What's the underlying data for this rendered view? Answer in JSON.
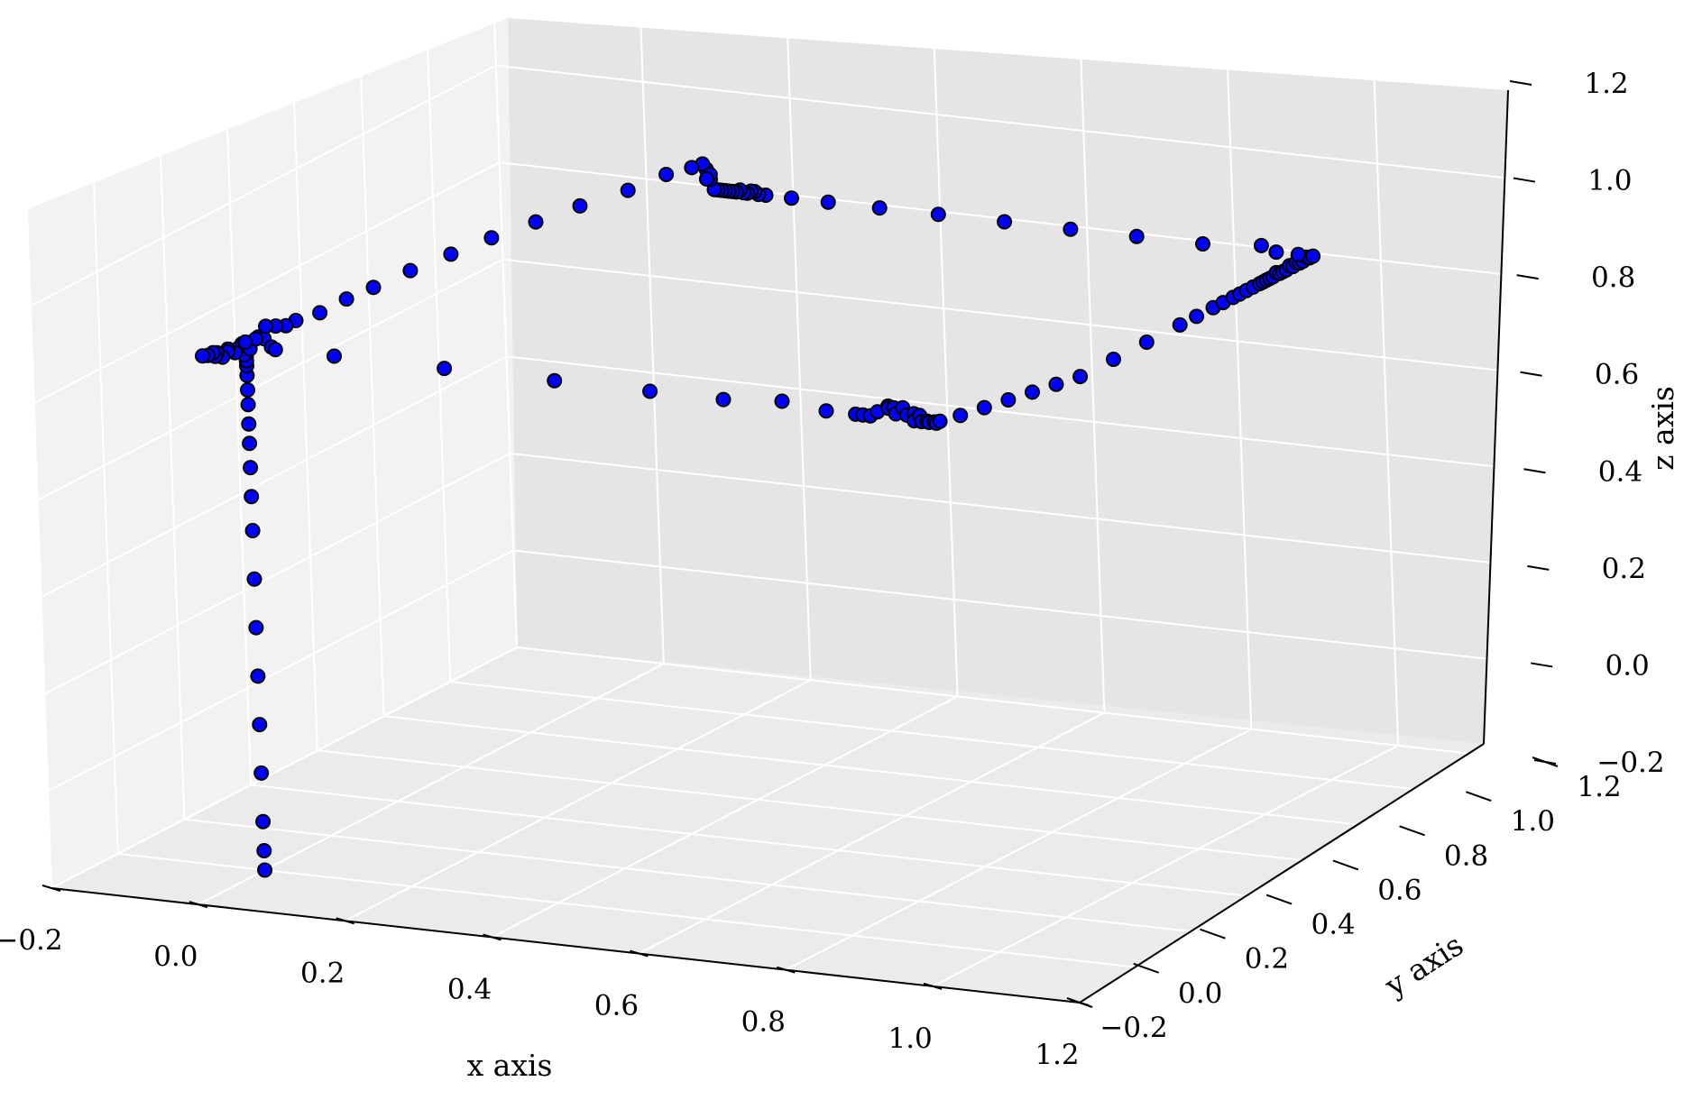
{
  "chart_data": {
    "type": "scatter",
    "title": "",
    "xlabel": "x axis",
    "ylabel": "y axis",
    "zlabel": "z axis",
    "xlim": [
      -0.2,
      1.2
    ],
    "ylim": [
      -0.2,
      1.2
    ],
    "zlim": [
      -0.2,
      1.2
    ],
    "x_ticks": [
      "−0.2",
      "0.0",
      "0.2",
      "0.4",
      "0.6",
      "0.8",
      "1.0",
      "1.2"
    ],
    "y_ticks": [
      "−0.2",
      "0.0",
      "0.2",
      "0.4",
      "0.6",
      "0.8",
      "1.0",
      "1.2"
    ],
    "z_ticks": [
      "−0.2",
      "0.0",
      "0.2",
      "0.4",
      "0.6",
      "0.8",
      "1.0",
      "1.2"
    ],
    "grid": true,
    "marker_color": "#0000ff",
    "series": [
      {
        "points": [
          [
            0.0,
            0.0,
            -0.2
          ],
          [
            0.0,
            0.0,
            -0.16
          ],
          [
            0.0,
            0.0,
            -0.1
          ],
          [
            0.0,
            0.0,
            0.0
          ],
          [
            0.0,
            0.0,
            0.1
          ],
          [
            0.0,
            0.0,
            0.2
          ],
          [
            0.0,
            0.0,
            0.3
          ],
          [
            0.0,
            0.0,
            0.4
          ],
          [
            0.0,
            0.0,
            0.5
          ],
          [
            0.0,
            0.0,
            0.57
          ],
          [
            0.0,
            0.0,
            0.63
          ],
          [
            0.0,
            0.0,
            0.68
          ],
          [
            0.0,
            0.0,
            0.72
          ],
          [
            0.0,
            0.0,
            0.76
          ],
          [
            0.0,
            0.0,
            0.79
          ],
          [
            0.0,
            0.0,
            0.82
          ],
          [
            0.0,
            0.0,
            0.84
          ],
          [
            0.0,
            0.0,
            0.86
          ],
          [
            0.0,
            0.0,
            0.87
          ],
          [
            0.0,
            0.0,
            0.85
          ],
          [
            0.0,
            0.0,
            0.88
          ],
          [
            -0.005,
            0.005,
            0.86
          ],
          [
            -0.01,
            0.01,
            0.88
          ],
          [
            -0.015,
            0.005,
            0.87
          ],
          [
            -0.02,
            0.01,
            0.86
          ],
          [
            -0.025,
            0.0,
            0.87
          ],
          [
            -0.03,
            0.01,
            0.86
          ],
          [
            -0.035,
            0.005,
            0.85
          ],
          [
            -0.04,
            0.0,
            0.86
          ],
          [
            -0.045,
            0.005,
            0.85
          ],
          [
            -0.05,
            0.01,
            0.855
          ],
          [
            -0.055,
            0.005,
            0.85
          ],
          [
            -0.06,
            0.0,
            0.85
          ],
          [
            0.005,
            -0.005,
            0.89
          ],
          [
            0.01,
            -0.01,
            0.88
          ],
          [
            0.015,
            0.005,
            0.9
          ],
          [
            0.025,
            0.0,
            0.9
          ],
          [
            0.03,
            0.01,
            0.88
          ],
          [
            0.04,
            0.0,
            0.88
          ],
          [
            0.12,
            0.0,
            0.88
          ],
          [
            0.27,
            0.0,
            0.88
          ],
          [
            0.42,
            0.0,
            0.88
          ],
          [
            0.55,
            0.0,
            0.88
          ],
          [
            0.65,
            0.0,
            0.88
          ],
          [
            0.73,
            0.0,
            0.89
          ],
          [
            0.79,
            0.0,
            0.88
          ],
          [
            0.83,
            0.0,
            0.88
          ],
          [
            0.84,
            0.0,
            0.88
          ],
          [
            0.85,
            0.0,
            0.88
          ],
          [
            0.86,
            0.0,
            0.89
          ],
          [
            0.87,
            0.01,
            0.9
          ],
          [
            0.875,
            0.0,
            0.9
          ],
          [
            0.88,
            0.005,
            0.9
          ],
          [
            0.885,
            0.0,
            0.89
          ],
          [
            0.89,
            0.01,
            0.9
          ],
          [
            0.9,
            0.0,
            0.89
          ],
          [
            0.905,
            0.01,
            0.89
          ],
          [
            0.91,
            0.0,
            0.88
          ],
          [
            0.915,
            0.005,
            0.89
          ],
          [
            0.92,
            0.0,
            0.88
          ],
          [
            0.925,
            0.005,
            0.88
          ],
          [
            0.93,
            0.0,
            0.88
          ],
          [
            0.935,
            0.005,
            0.88
          ],
          [
            0.94,
            0.0,
            0.88
          ],
          [
            0.945,
            0.0,
            0.885
          ],
          [
            0.95,
            0.05,
            0.88
          ],
          [
            0.96,
            0.1,
            0.88
          ],
          [
            0.97,
            0.15,
            0.88
          ],
          [
            0.98,
            0.2,
            0.88
          ],
          [
            0.99,
            0.25,
            0.88
          ],
          [
            1.0,
            0.3,
            0.88
          ],
          [
            1.0,
            0.4,
            0.88
          ],
          [
            1.0,
            0.5,
            0.88
          ],
          [
            1.0,
            0.6,
            0.88
          ],
          [
            1.0,
            0.65,
            0.88
          ],
          [
            1.0,
            0.7,
            0.88
          ],
          [
            1.0,
            0.73,
            0.88
          ],
          [
            1.0,
            0.76,
            0.88
          ],
          [
            1.0,
            0.78,
            0.88
          ],
          [
            1.0,
            0.8,
            0.88
          ],
          [
            1.0,
            0.82,
            0.88
          ],
          [
            1.0,
            0.84,
            0.88
          ],
          [
            1.0,
            0.85,
            0.88
          ],
          [
            1.0,
            0.86,
            0.88
          ],
          [
            1.0,
            0.87,
            0.88
          ],
          [
            1.0,
            0.88,
            0.88
          ],
          [
            1.0,
            0.89,
            0.885
          ],
          [
            1.0,
            0.9,
            0.88
          ],
          [
            1.0,
            0.91,
            0.88
          ],
          [
            1.0,
            0.92,
            0.88
          ],
          [
            1.0,
            0.93,
            0.885
          ],
          [
            1.0,
            0.94,
            0.88
          ],
          [
            1.0,
            0.95,
            0.885
          ],
          [
            1.0,
            0.96,
            0.88
          ],
          [
            1.0,
            0.97,
            0.88
          ],
          [
            1.0,
            0.98,
            0.885
          ],
          [
            1.0,
            0.99,
            0.88
          ],
          [
            1.0,
            1.0,
            0.88
          ],
          [
            0.98,
            1.0,
            0.88
          ],
          [
            0.95,
            1.0,
            0.88
          ],
          [
            0.93,
            1.0,
            0.89
          ],
          [
            0.85,
            1.0,
            0.88
          ],
          [
            0.76,
            1.0,
            0.88
          ],
          [
            0.67,
            1.0,
            0.88
          ],
          [
            0.58,
            1.0,
            0.88
          ],
          [
            0.49,
            1.0,
            0.88
          ],
          [
            0.41,
            1.0,
            0.88
          ],
          [
            0.34,
            1.0,
            0.88
          ],
          [
            0.29,
            1.0,
            0.88
          ],
          [
            0.255,
            1.0,
            0.88
          ],
          [
            0.245,
            1.0,
            0.88
          ],
          [
            0.24,
            1.0,
            0.885
          ],
          [
            0.235,
            1.0,
            0.885
          ],
          [
            0.23,
            1.0,
            0.88
          ],
          [
            0.225,
            1.0,
            0.88
          ],
          [
            0.22,
            1.0,
            0.885
          ],
          [
            0.215,
            1.0,
            0.88
          ],
          [
            0.21,
            1.0,
            0.88
          ],
          [
            0.205,
            1.0,
            0.88
          ],
          [
            0.2,
            1.0,
            0.88
          ],
          [
            0.195,
            1.0,
            0.88
          ],
          [
            0.19,
            1.0,
            0.88
          ],
          [
            0.185,
            1.0,
            0.88
          ],
          [
            0.18,
            1.0,
            0.9
          ],
          [
            0.175,
            1.0,
            0.92
          ],
          [
            0.17,
            1.0,
            0.93
          ],
          [
            0.18,
            1.0,
            0.91
          ],
          [
            0.175,
            1.0,
            0.9
          ],
          [
            0.155,
            1.0,
            0.92
          ],
          [
            0.12,
            1.0,
            0.9
          ],
          [
            0.09,
            0.95,
            0.88
          ],
          [
            0.07,
            0.85,
            0.88
          ],
          [
            0.055,
            0.75,
            0.88
          ],
          [
            0.04,
            0.65,
            0.88
          ],
          [
            0.03,
            0.55,
            0.88
          ],
          [
            0.02,
            0.45,
            0.88
          ],
          [
            0.015,
            0.35,
            0.88
          ],
          [
            0.01,
            0.28,
            0.88
          ],
          [
            0.01,
            0.2,
            0.88
          ],
          [
            0.0,
            0.15,
            0.88
          ],
          [
            0.0,
            0.12,
            0.88
          ],
          [
            0.0,
            0.09,
            0.89
          ],
          [
            0.0,
            0.06,
            0.9
          ],
          [
            -0.005,
            0.04,
            0.88
          ],
          [
            -0.01,
            0.02,
            0.88
          ]
        ]
      }
    ]
  }
}
